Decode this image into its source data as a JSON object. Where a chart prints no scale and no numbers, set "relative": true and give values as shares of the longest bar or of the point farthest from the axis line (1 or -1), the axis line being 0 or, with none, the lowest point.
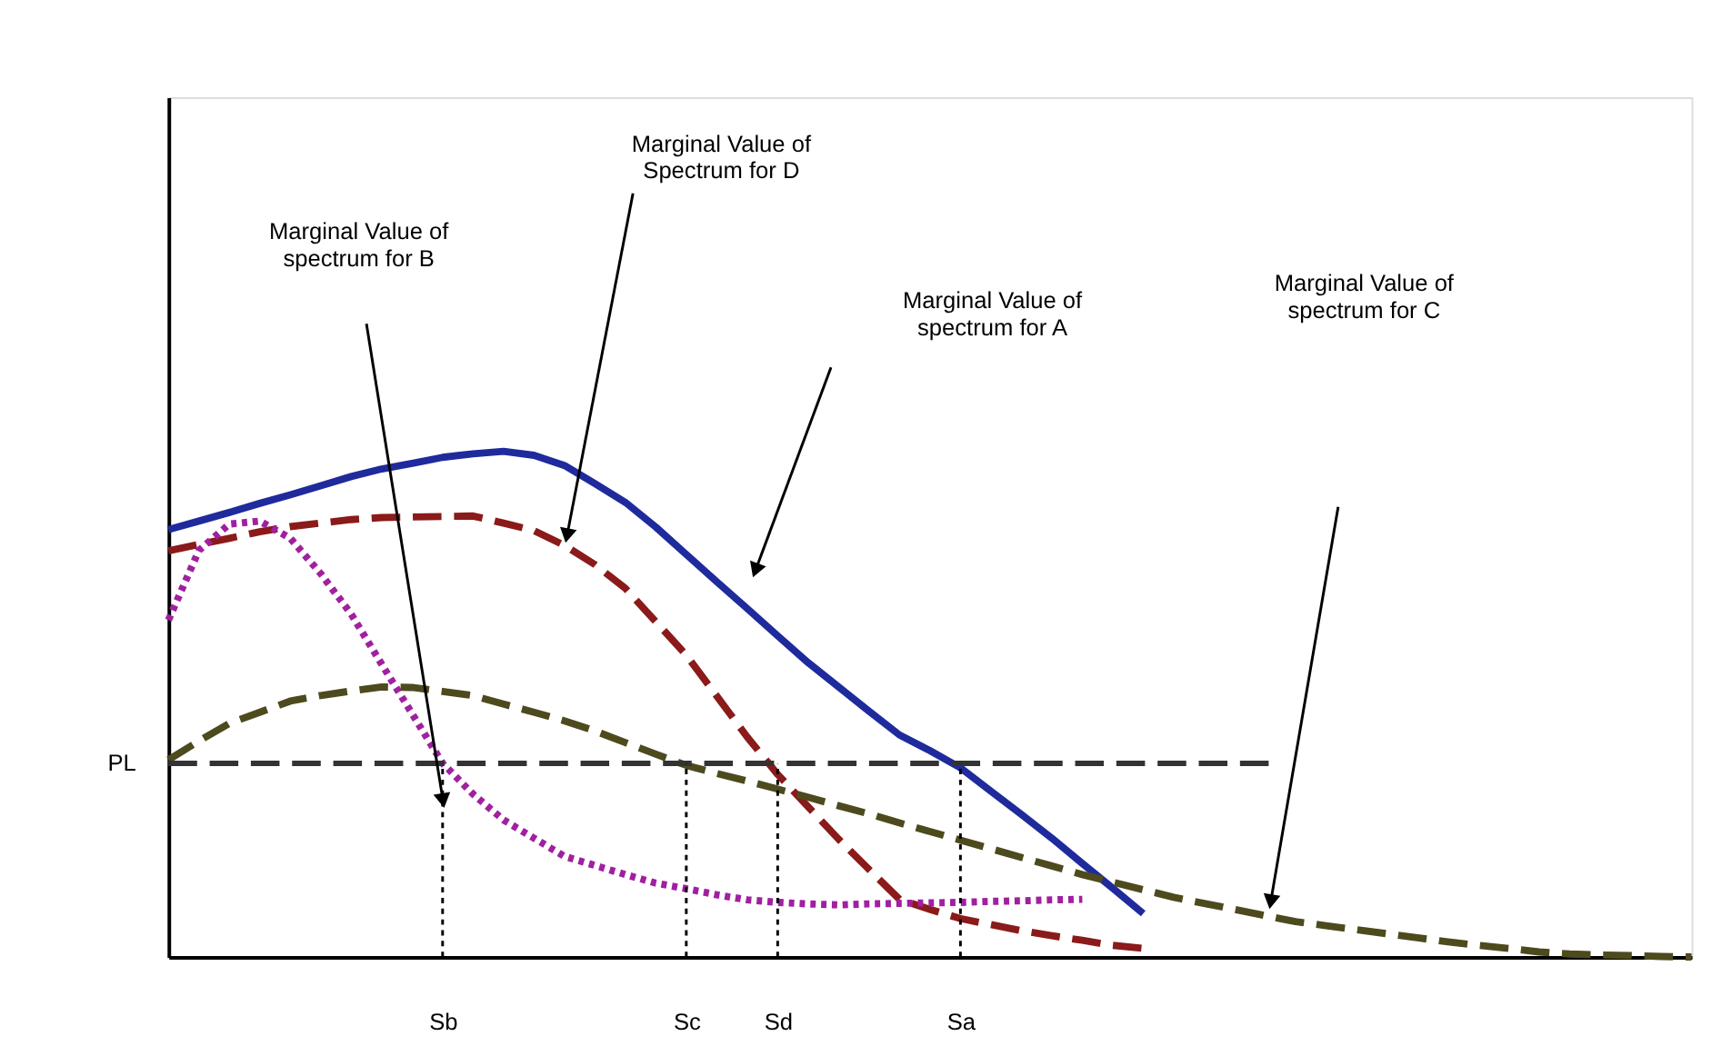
{
  "chart_data": {
    "type": "line",
    "relative": true,
    "grid": false,
    "legend": false,
    "tick_labels": "x",
    "categories": [
      null,
      null,
      null,
      null,
      null,
      null,
      null,
      null,
      null,
      "Sb",
      null,
      null,
      null,
      null,
      null,
      null,
      null,
      "Sc",
      null,
      null,
      "Sd",
      null,
      null,
      null,
      null,
      null,
      "Sa",
      null,
      null,
      null,
      null,
      null,
      null,
      null,
      null,
      null,
      null,
      null,
      null,
      null,
      null,
      null,
      null,
      null,
      null,
      null,
      null,
      null,
      null,
      null,
      null
    ],
    "series": [
      {
        "color": "#1f2a9c",
        "line_style": "solid",
        "values": [
          0.845,
          0.862,
          0.879,
          0.897,
          0.914,
          0.932,
          0.95,
          0.965,
          0.976,
          0.988,
          0.995,
          1.0,
          0.992,
          0.972,
          0.936,
          0.899,
          0.85,
          0.796,
          0.742,
          0.689,
          0.635,
          0.582,
          0.534,
          0.486,
          0.439,
          0.408,
          0.374,
          0.328,
          0.282,
          0.235,
          0.185,
          0.136,
          0.086,
          null,
          null,
          null,
          null,
          null,
          null,
          null,
          null,
          null,
          null,
          null,
          null,
          null,
          null,
          null,
          null,
          null,
          null
        ]
      },
      {
        "color": "#8b1a1a",
        "line_style": "dashed",
        "values": [
          0.803,
          0.816,
          0.828,
          0.841,
          0.851,
          0.858,
          0.865,
          0.869,
          0.87,
          0.871,
          0.872,
          0.858,
          0.843,
          0.814,
          0.776,
          0.729,
          0.663,
          0.597,
          0.516,
          0.435,
          0.361,
          0.297,
          0.233,
          0.173,
          0.114,
          0.094,
          0.076,
          0.064,
          0.052,
          0.042,
          0.033,
          0.023,
          0.017,
          null,
          null,
          null,
          null,
          null,
          null,
          null,
          null,
          null,
          null,
          null,
          null,
          null,
          null,
          null,
          null,
          null,
          null
        ]
      },
      {
        "color": "#a020a0",
        "line_style": "dotted",
        "values": [
          0.666,
          0.804,
          0.856,
          0.862,
          0.828,
          0.758,
          0.678,
          0.579,
          0.481,
          0.383,
          0.322,
          0.271,
          0.235,
          0.199,
          0.181,
          0.163,
          0.146,
          0.135,
          0.123,
          0.113,
          0.108,
          0.105,
          0.103,
          0.105,
          0.106,
          0.107,
          0.108,
          0.11,
          0.111,
          0.113,
          0.114,
          null,
          null,
          null,
          null,
          null,
          null,
          null,
          null,
          null,
          null,
          null,
          null,
          null,
          null,
          null,
          null,
          null,
          null,
          null,
          null
        ]
      },
      {
        "color": "#4d4a1e",
        "line_style": "dashed",
        "values": [
          0.39,
          0.427,
          0.462,
          0.484,
          0.506,
          0.517,
          0.526,
          0.534,
          0.533,
          0.525,
          0.517,
          0.5,
          0.484,
          0.467,
          0.447,
          0.424,
          0.401,
          0.379,
          0.363,
          0.348,
          0.332,
          0.316,
          0.299,
          0.283,
          0.265,
          0.248,
          0.231,
          0.214,
          0.197,
          0.18,
          0.163,
          0.148,
          0.133,
          0.118,
          0.106,
          0.094,
          0.082,
          0.07,
          0.062,
          0.054,
          0.046,
          0.038,
          0.03,
          0.023,
          0.017,
          0.01,
          0.006,
          0.004,
          0.003,
          0.001,
          0
        ]
      }
    ],
    "ref_lines": [
      {
        "axis": "y",
        "value": 0.383,
        "label": "PL",
        "line_style": "dashed",
        "color": "#333333"
      },
      {
        "axis": "x",
        "value": "Sb",
        "line_style": "dotted",
        "color": "#000000"
      },
      {
        "axis": "x",
        "value": "Sc",
        "line_style": "dotted",
        "color": "#000000"
      },
      {
        "axis": "x",
        "value": "Sd",
        "line_style": "dotted",
        "color": "#000000"
      },
      {
        "axis": "x",
        "value": "Sa",
        "line_style": "dotted",
        "color": "#000000"
      }
    ],
    "annotations": [
      "Marginal Value of\nspectrum for B",
      "Marginal Value of\nSpectrum for D",
      "Marginal Value of\nspectrum for A",
      "Marginal Value of\nspectrum for C"
    ]
  }
}
